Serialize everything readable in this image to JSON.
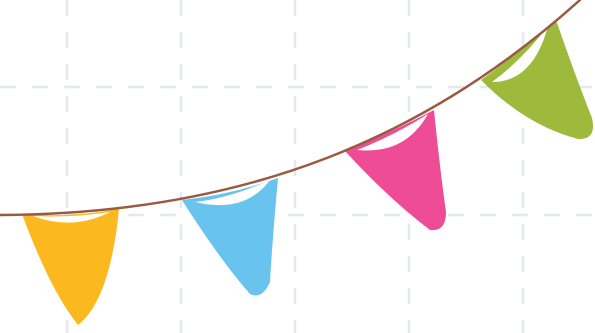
{
  "colors": {
    "background": "#ffffff",
    "grid": "#e6e8f0",
    "string": "#9a5a3f",
    "flag_highlight": "#ffffff"
  },
  "flags": [
    {
      "name": "flag-yellow",
      "color": "#fbb91f"
    },
    {
      "name": "flag-blue",
      "color": "#69c3ef"
    },
    {
      "name": "flag-pink",
      "color": "#ee4c94"
    },
    {
      "name": "flag-green",
      "color": "#9dba3c"
    }
  ]
}
